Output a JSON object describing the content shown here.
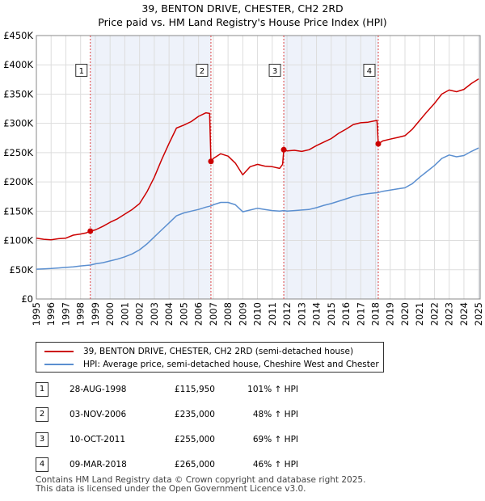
{
  "title_line1": "39, BENTON DRIVE, CHESTER, CH2 2RD",
  "title_line2": "Price paid vs. HM Land Registry's House Price Index (HPI)",
  "chart_data": {
    "type": "line",
    "x_range": [
      1995,
      2025.1
    ],
    "ylim": [
      0,
      450000
    ],
    "y_ticks": [
      {
        "value": 0,
        "label": "£0"
      },
      {
        "value": 50000,
        "label": "£50K"
      },
      {
        "value": 100000,
        "label": "£100K"
      },
      {
        "value": 150000,
        "label": "£150K"
      },
      {
        "value": 200000,
        "label": "£200K"
      },
      {
        "value": 250000,
        "label": "£250K"
      },
      {
        "value": 300000,
        "label": "£300K"
      },
      {
        "value": 350000,
        "label": "£350K"
      },
      {
        "value": 400000,
        "label": "£400K"
      },
      {
        "value": 450000,
        "label": "£450K"
      }
    ],
    "x_ticks": [
      "1995",
      "1996",
      "1997",
      "1998",
      "1999",
      "2000",
      "2001",
      "2002",
      "2003",
      "2004",
      "2005",
      "2006",
      "2007",
      "2008",
      "2009",
      "2010",
      "2011",
      "2012",
      "2013",
      "2014",
      "2015",
      "2016",
      "2017",
      "2018",
      "2019",
      "2020",
      "2021",
      "2022",
      "2023",
      "2024",
      "2025"
    ],
    "grid": true,
    "colors": {
      "property": "#cc0000",
      "hpi": "#5b8fd0",
      "grid": "#dddddd",
      "shade": "#eef2fa",
      "vline": "#dd4444"
    },
    "series": [
      {
        "name": "39, BENTON DRIVE, CHESTER, CH2 2RD (semi-detached house)",
        "key": "property",
        "points": [
          [
            1995.0,
            104000
          ],
          [
            1995.5,
            102000
          ],
          [
            1996.0,
            101000
          ],
          [
            1996.5,
            103000
          ],
          [
            1997.0,
            104000
          ],
          [
            1997.5,
            109000
          ],
          [
            1998.0,
            111000
          ],
          [
            1998.4,
            113000
          ],
          [
            1998.66,
            115950
          ],
          [
            1999.0,
            118000
          ],
          [
            1999.5,
            124000
          ],
          [
            2000.0,
            131000
          ],
          [
            2000.5,
            137000
          ],
          [
            2001.0,
            145000
          ],
          [
            2001.5,
            153000
          ],
          [
            2002.0,
            163000
          ],
          [
            2002.5,
            183000
          ],
          [
            2003.0,
            208000
          ],
          [
            2003.5,
            238000
          ],
          [
            2004.0,
            266000
          ],
          [
            2004.5,
            292000
          ],
          [
            2005.0,
            297000
          ],
          [
            2005.5,
            303000
          ],
          [
            2006.0,
            312000
          ],
          [
            2006.5,
            318000
          ],
          [
            2006.75,
            317000
          ],
          [
            2006.84,
            235000
          ],
          [
            2007.0,
            240000
          ],
          [
            2007.5,
            248000
          ],
          [
            2008.0,
            244000
          ],
          [
            2008.5,
            232000
          ],
          [
            2009.0,
            212000
          ],
          [
            2009.5,
            226000
          ],
          [
            2010.0,
            230000
          ],
          [
            2010.5,
            227000
          ],
          [
            2011.0,
            226000
          ],
          [
            2011.5,
            223000
          ],
          [
            2011.7,
            230000
          ],
          [
            2011.78,
            255000
          ],
          [
            2012.0,
            253000
          ],
          [
            2012.5,
            254000
          ],
          [
            2013.0,
            252000
          ],
          [
            2013.5,
            255000
          ],
          [
            2014.0,
            262000
          ],
          [
            2014.5,
            268000
          ],
          [
            2015.0,
            274000
          ],
          [
            2015.5,
            283000
          ],
          [
            2016.0,
            290000
          ],
          [
            2016.5,
            298000
          ],
          [
            2017.0,
            301000
          ],
          [
            2017.5,
            302000
          ],
          [
            2018.1,
            305000
          ],
          [
            2018.19,
            265000
          ],
          [
            2018.5,
            270000
          ],
          [
            2019.0,
            273000
          ],
          [
            2019.5,
            276000
          ],
          [
            2020.0,
            279000
          ],
          [
            2020.5,
            290000
          ],
          [
            2021.0,
            305000
          ],
          [
            2021.5,
            320000
          ],
          [
            2022.0,
            334000
          ],
          [
            2022.5,
            350000
          ],
          [
            2023.0,
            357000
          ],
          [
            2023.5,
            354000
          ],
          [
            2024.0,
            358000
          ],
          [
            2024.5,
            368000
          ],
          [
            2025.0,
            376000
          ]
        ]
      },
      {
        "name": "HPI: Average price, semi-detached house, Cheshire West and Chester",
        "key": "hpi",
        "points": [
          [
            1995.0,
            51000
          ],
          [
            1995.5,
            51500
          ],
          [
            1996.0,
            52000
          ],
          [
            1996.5,
            53000
          ],
          [
            1997.0,
            54000
          ],
          [
            1997.5,
            55000
          ],
          [
            1998.0,
            56500
          ],
          [
            1998.66,
            58000
          ],
          [
            1999.0,
            60000
          ],
          [
            1999.5,
            62000
          ],
          [
            2000.0,
            65000
          ],
          [
            2000.5,
            68000
          ],
          [
            2001.0,
            72000
          ],
          [
            2001.5,
            77000
          ],
          [
            2002.0,
            84000
          ],
          [
            2002.5,
            94000
          ],
          [
            2003.0,
            106000
          ],
          [
            2003.5,
            118000
          ],
          [
            2004.0,
            130000
          ],
          [
            2004.5,
            142000
          ],
          [
            2005.0,
            147000
          ],
          [
            2005.5,
            150000
          ],
          [
            2006.0,
            153000
          ],
          [
            2006.5,
            157000
          ],
          [
            2006.84,
            159000
          ],
          [
            2007.0,
            161000
          ],
          [
            2007.5,
            165000
          ],
          [
            2008.0,
            165000
          ],
          [
            2008.5,
            161000
          ],
          [
            2009.0,
            149000
          ],
          [
            2009.5,
            152000
          ],
          [
            2010.0,
            155000
          ],
          [
            2010.5,
            153000
          ],
          [
            2011.0,
            151000
          ],
          [
            2011.5,
            150000
          ],
          [
            2011.78,
            151000
          ],
          [
            2012.0,
            150000
          ],
          [
            2012.5,
            151000
          ],
          [
            2013.0,
            152000
          ],
          [
            2013.5,
            153000
          ],
          [
            2014.0,
            156000
          ],
          [
            2014.5,
            160000
          ],
          [
            2015.0,
            163000
          ],
          [
            2015.5,
            167000
          ],
          [
            2016.0,
            171000
          ],
          [
            2016.5,
            175000
          ],
          [
            2017.0,
            178000
          ],
          [
            2017.5,
            180000
          ],
          [
            2018.19,
            182000
          ],
          [
            2018.5,
            184000
          ],
          [
            2019.0,
            186000
          ],
          [
            2019.5,
            188000
          ],
          [
            2020.0,
            190000
          ],
          [
            2020.5,
            197000
          ],
          [
            2021.0,
            208000
          ],
          [
            2021.5,
            218000
          ],
          [
            2022.0,
            228000
          ],
          [
            2022.5,
            240000
          ],
          [
            2023.0,
            246000
          ],
          [
            2023.5,
            243000
          ],
          [
            2024.0,
            245000
          ],
          [
            2024.5,
            252000
          ],
          [
            2025.0,
            258000
          ]
        ]
      }
    ],
    "sales": [
      {
        "num": "1",
        "date": "28-AUG-1998",
        "price": "£115,950",
        "hpi": "101% ↑ HPI",
        "x": 1998.66,
        "value": 115950
      },
      {
        "num": "2",
        "date": "03-NOV-2006",
        "price": "£235,000",
        "hpi": "48% ↑ HPI",
        "x": 2006.84,
        "value": 235000
      },
      {
        "num": "3",
        "date": "10-OCT-2011",
        "price": "£255,000",
        "hpi": "69% ↑ HPI",
        "x": 2011.78,
        "value": 255000
      },
      {
        "num": "4",
        "date": "09-MAR-2018",
        "price": "£265,000",
        "hpi": "46% ↑ HPI",
        "x": 2018.19,
        "value": 265000
      }
    ],
    "shaded_ranges": [
      [
        1998.66,
        2006.84
      ],
      [
        2011.78,
        2018.19
      ],
      [
        2025.0,
        2025.1
      ]
    ],
    "label_value": 390000
  },
  "legend": {
    "property_label": "39, BENTON DRIVE, CHESTER, CH2 2RD (semi-detached house)",
    "hpi_label": "HPI: Average price, semi-detached house, Cheshire West and Chester"
  },
  "footer": {
    "line1": "Contains HM Land Registry data © Crown copyright and database right 2025.",
    "line2": "This data is licensed under the Open Government Licence v3.0."
  }
}
